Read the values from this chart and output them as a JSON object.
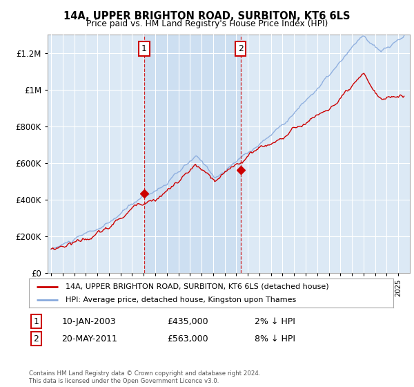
{
  "title": "14A, UPPER BRIGHTON ROAD, SURBITON, KT6 6LS",
  "subtitle": "Price paid vs. HM Land Registry's House Price Index (HPI)",
  "legend_line1": "14A, UPPER BRIGHTON ROAD, SURBITON, KT6 6LS (detached house)",
  "legend_line2": "HPI: Average price, detached house, Kingston upon Thames",
  "annotation1_date": "10-JAN-2003",
  "annotation1_price": "£435,000",
  "annotation1_hpi": "2% ↓ HPI",
  "annotation2_date": "20-MAY-2011",
  "annotation2_price": "£563,000",
  "annotation2_hpi": "8% ↓ HPI",
  "footer": "Contains HM Land Registry data © Crown copyright and database right 2024.\nThis data is licensed under the Open Government Licence v3.0.",
  "price_color": "#cc0000",
  "hpi_color": "#88aadd",
  "shade_color": "#ddeeff",
  "background_color": "#dce9f5",
  "sale1_year": 2003.04,
  "sale1_price": 435000,
  "sale2_year": 2011.38,
  "sale2_price": 563000,
  "ylim_max": 1300000,
  "xstart": 1995,
  "xend": 2025.5,
  "hpi_seed": 10,
  "price_seed": 20
}
